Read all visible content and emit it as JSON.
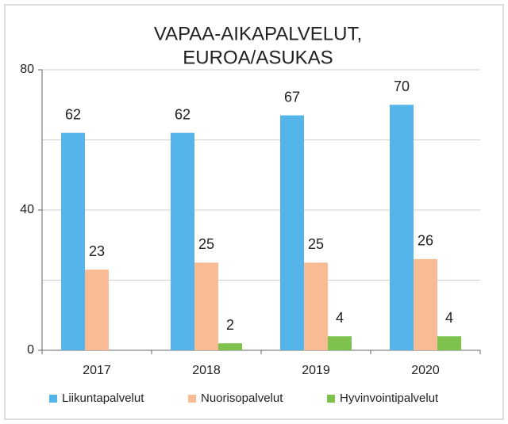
{
  "chart_data": {
    "type": "bar",
    "title": [
      "VAPAA-AIKAPALVELUT,",
      "EUROA/ASUKAS"
    ],
    "categories": [
      "2017",
      "2018",
      "2019",
      "2020"
    ],
    "series": [
      {
        "name": "Liikuntapalvelut",
        "color": "#55b4ea",
        "values": [
          62,
          62,
          67,
          70
        ]
      },
      {
        "name": "Nuorisopalvelut",
        "color": "#f8bb93",
        "values": [
          23,
          25,
          25,
          26
        ]
      },
      {
        "name": "Hyvinvointipalvelut",
        "color": "#7cc24c",
        "values": [
          null,
          2,
          4,
          4
        ]
      }
    ],
    "ylim": [
      0,
      80
    ],
    "yticks": [
      0,
      40,
      80
    ],
    "ygrid": [
      0,
      20,
      40,
      60,
      80
    ],
    "legend": "bottom"
  }
}
